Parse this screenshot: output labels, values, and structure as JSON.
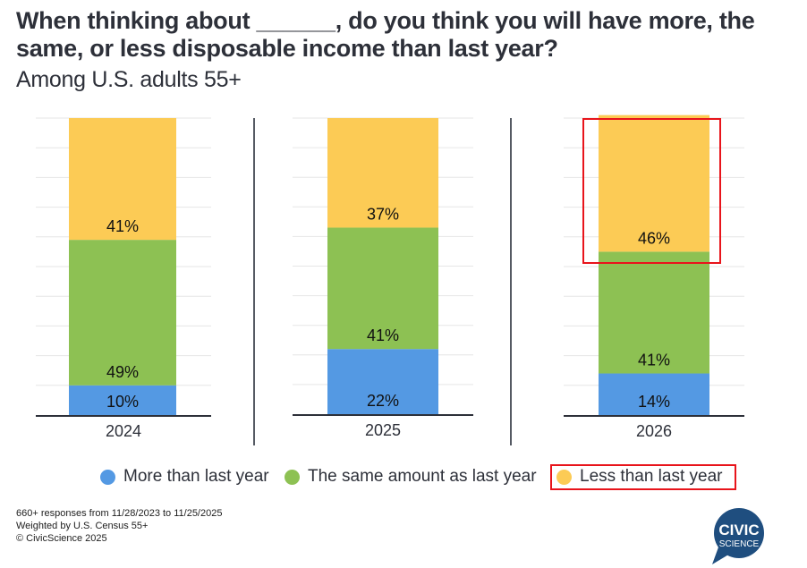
{
  "title": "When thinking about ______, do you think you will have more, the same, or less disposable income than last year?",
  "subtitle": "Among U.S. adults 55+",
  "chart_data": {
    "type": "bar",
    "stacked": true,
    "title": "When thinking about ______, do you think you will have more, the same, or less disposable income than last year?",
    "subtitle": "Among U.S. adults 55+",
    "xlabel": "",
    "ylabel": "",
    "ylim": [
      0,
      100
    ],
    "grid": true,
    "categories": [
      "2024",
      "2025",
      "2026"
    ],
    "series": [
      {
        "name": "More than last year",
        "color": "#5499e3",
        "values": [
          10,
          22,
          14
        ],
        "labels": [
          "10%",
          "22%",
          "14%"
        ]
      },
      {
        "name": "The same amount as last year",
        "color": "#8dc153",
        "values": [
          49,
          41,
          41
        ],
        "labels": [
          "49%",
          "41%",
          "41%"
        ]
      },
      {
        "name": "Less than last year",
        "color": "#fccb55",
        "values": [
          41,
          37,
          46
        ],
        "labels": [
          "41%",
          "37%",
          "46%"
        ]
      }
    ],
    "legend_position": "bottom",
    "highlighted": {
      "category": "2026",
      "series": "Less than last year",
      "color": "#e8141b"
    }
  },
  "legend": [
    {
      "label": "More than last year",
      "color": "#5499e3"
    },
    {
      "label": "The same amount as last year",
      "color": "#8dc153"
    },
    {
      "label": "Less than last year",
      "color": "#fccb55",
      "highlighted": true
    }
  ],
  "footer": {
    "line1": "660+ responses from 11/28/2023 to 11/25/2025",
    "line2": "Weighted by U.S. Census 55+",
    "line3": "© CivicScience 2025"
  },
  "logo": {
    "line1": "CIVIC",
    "line2": "SCIENCE",
    "color": "#1f4e7f"
  }
}
